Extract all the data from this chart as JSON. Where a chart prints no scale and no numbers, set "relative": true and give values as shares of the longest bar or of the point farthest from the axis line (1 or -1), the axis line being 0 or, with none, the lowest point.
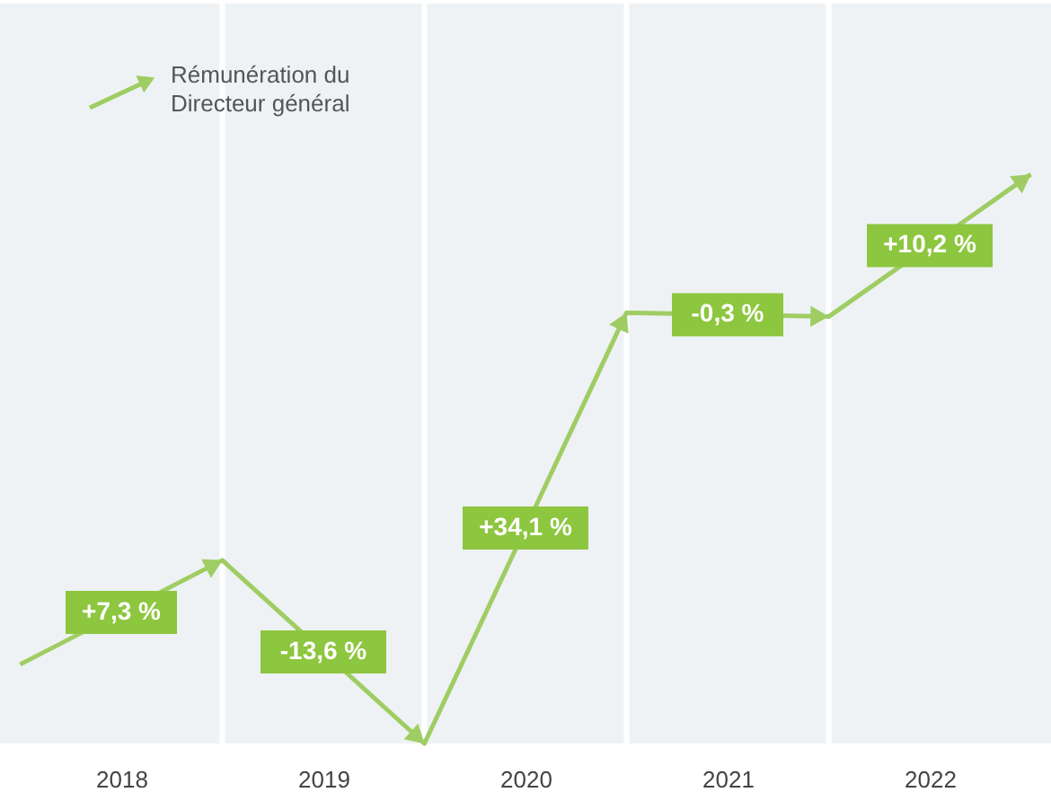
{
  "chart_data": {
    "type": "line",
    "relative": true,
    "x": [
      2017.5,
      2018.5,
      2019.5,
      2020.5,
      2021.5,
      2022.5
    ],
    "xlim": [
      2017.4,
      2022.6
    ],
    "xticks": [
      2018,
      2019,
      2020,
      2021,
      2022
    ],
    "series": [
      {
        "name": "Rémunération du Directeur général",
        "color": "#9fcd63",
        "values": [
          0.139,
          0.322,
          0,
          0.757,
          0.75,
          1
        ]
      }
    ],
    "legend": "top left",
    "ref_lines": [
      {
        "axis": "x",
        "value": 2018.5,
        "color": "#ffffff"
      },
      {
        "axis": "x",
        "value": 2019.5,
        "color": "#ffffff"
      },
      {
        "axis": "x",
        "value": 2020.5,
        "color": "#ffffff"
      },
      {
        "axis": "x",
        "value": 2021.5,
        "color": "#ffffff"
      }
    ],
    "annotations": [
      "+7,3 %",
      "-13,6 %",
      "+34,1 %",
      "-0,3 %",
      "+10,2 %"
    ]
  }
}
